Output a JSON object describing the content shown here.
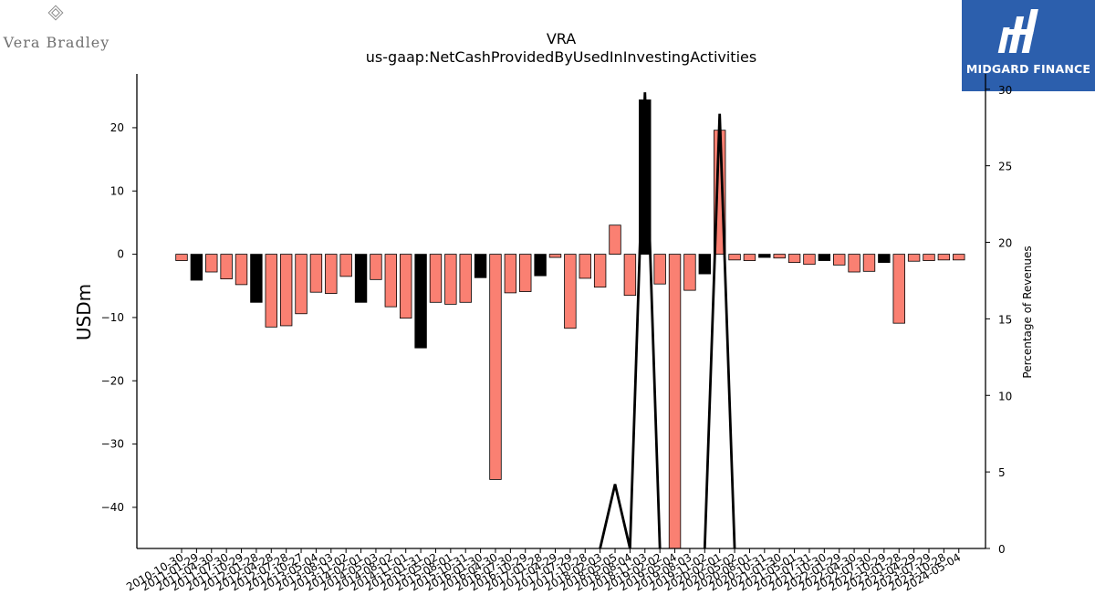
{
  "logos": {
    "left_brand": "Vera Bradley",
    "right_brand": "MIDGARD FINANCE"
  },
  "chart_data": {
    "type": "bar",
    "title": "VRA",
    "subtitle": "us-gaap:NetCashProvidedByUsedInInvestingActivities",
    "ylabel": "USDm",
    "y2label": "Percentage of Revenues",
    "ylim": [
      -46.5,
      28.5
    ],
    "y2lim": [
      0,
      31
    ],
    "yticks": [
      -40,
      -30,
      -20,
      -10,
      0,
      10,
      20
    ],
    "y2ticks": [
      0,
      5,
      10,
      15,
      20,
      25,
      30
    ],
    "grid": false,
    "bar_colors": {
      "default": "#fa8072",
      "highlight": "#000000"
    },
    "categories": [
      "2010-10-30",
      "2011-01-29",
      "2011-04-30",
      "2011-07-30",
      "2011-10-29",
      "2012-01-28",
      "2012-04-28",
      "2012-07-28",
      "2012-10-27",
      "2013-05-04",
      "2013-08-03",
      "2013-11-02",
      "2014-02-01",
      "2014-05-03",
      "2014-08-02",
      "2014-11-01",
      "2015-01-31",
      "2015-05-02",
      "2015-08-01",
      "2015-10-31",
      "2016-01-30",
      "2016-04-30",
      "2016-07-30",
      "2016-10-29",
      "2017-01-28",
      "2017-04-29",
      "2017-07-29",
      "2017-10-28",
      "2018-02-03",
      "2018-05-05",
      "2018-08-04",
      "2018-11-03",
      "2019-02-02",
      "2019-05-04",
      "2019-08-03",
      "2019-11-02",
      "2020-02-01",
      "2020-05-02",
      "2020-08-01",
      "2020-10-31",
      "2021-01-30",
      "2021-05-01",
      "2021-07-31",
      "2021-10-30",
      "2022-01-29",
      "2022-04-30",
      "2022-07-30",
      "2022-10-29",
      "2023-01-28",
      "2023-04-29",
      "2023-07-29",
      "2023-10-28",
      "2024-05-04"
    ],
    "xtick_labels": [
      "2010-10-30",
      "2011-01-29",
      "2011-04-30",
      "2011-07-30",
      "2011-10-29",
      "2012-01-28",
      "2012-04-28",
      "2012-07-28",
      "2012-10-27",
      "2013-05-04",
      "2013-08-03",
      "2013-11-02",
      "2014-02-01",
      "2014-05-03",
      "2014-08-02",
      "2014-11-01",
      "2015-01-31",
      "2015-05-02",
      "2015-08-01",
      "2015-10-31",
      "2016-01-30",
      "2016-04-30",
      "2016-07-30",
      "2016-10-29",
      "2017-01-28",
      "2017-04-29",
      "2017-07-29",
      "2017-10-28",
      "2018-02-03",
      "2018-05-05",
      "2018-08-04",
      "2018-11-03",
      "2019-02-02",
      "2019-05-04",
      "2019-08-03",
      "2019-11-02",
      "2020-02-01",
      "2020-05-02",
      "2020-08-01",
      "2020-10-31",
      "2021-01-30",
      "2021-05-01",
      "2021-07-31",
      "2021-10-30",
      "2022-01-29",
      "2022-04-30",
      "2022-07-30",
      "2022-10-29",
      "2023-01-28",
      "2023-04-29",
      "2023-07-29",
      "2023-10-28",
      "2024-05-04"
    ],
    "series": [
      {
        "values": [
          -1.0,
          -4.1,
          -2.8,
          -3.9,
          -4.8,
          -7.6,
          -11.5,
          -11.3,
          -9.4,
          -6.0,
          -6.2,
          -3.5,
          -7.6,
          -4.0,
          -8.3,
          -10.1,
          -14.8,
          -7.6,
          -7.9,
          -7.6,
          -3.7,
          -35.6,
          -6.1,
          -5.9,
          -3.4,
          -0.5,
          -11.7,
          -3.8,
          -5.2,
          4.6,
          -6.5,
          24.4,
          -4.7,
          -46.5,
          -5.7,
          -3.1,
          19.6,
          -0.9,
          -1.0,
          -0.5,
          -0.6,
          -1.3,
          -1.6,
          -1.0,
          -1.7,
          -2.8,
          -2.7,
          -1.3,
          -10.9,
          -1.1,
          -1.0,
          -0.9,
          -0.9
        ],
        "highlight": [
          false,
          true,
          false,
          false,
          false,
          true,
          false,
          false,
          false,
          false,
          false,
          false,
          true,
          false,
          false,
          false,
          true,
          false,
          false,
          false,
          true,
          false,
          false,
          false,
          true,
          false,
          false,
          false,
          false,
          false,
          false,
          true,
          false,
          false,
          false,
          true,
          false,
          false,
          false,
          true,
          false,
          false,
          false,
          true,
          false,
          false,
          false,
          true,
          false,
          false,
          false,
          false,
          false
        ]
      },
      {
        "name": "percentage-of-revenues",
        "y2_values": [
          null,
          null,
          null,
          null,
          null,
          null,
          null,
          null,
          null,
          null,
          null,
          null,
          null,
          null,
          null,
          null,
          null,
          null,
          null,
          null,
          null,
          null,
          null,
          null,
          null,
          null,
          null,
          null,
          0,
          4.2,
          0,
          29.8,
          0,
          null,
          null,
          0,
          28.4,
          0,
          null,
          null,
          null,
          null,
          null,
          null,
          null,
          null,
          null,
          null,
          null,
          null,
          null,
          null,
          null
        ]
      }
    ]
  }
}
